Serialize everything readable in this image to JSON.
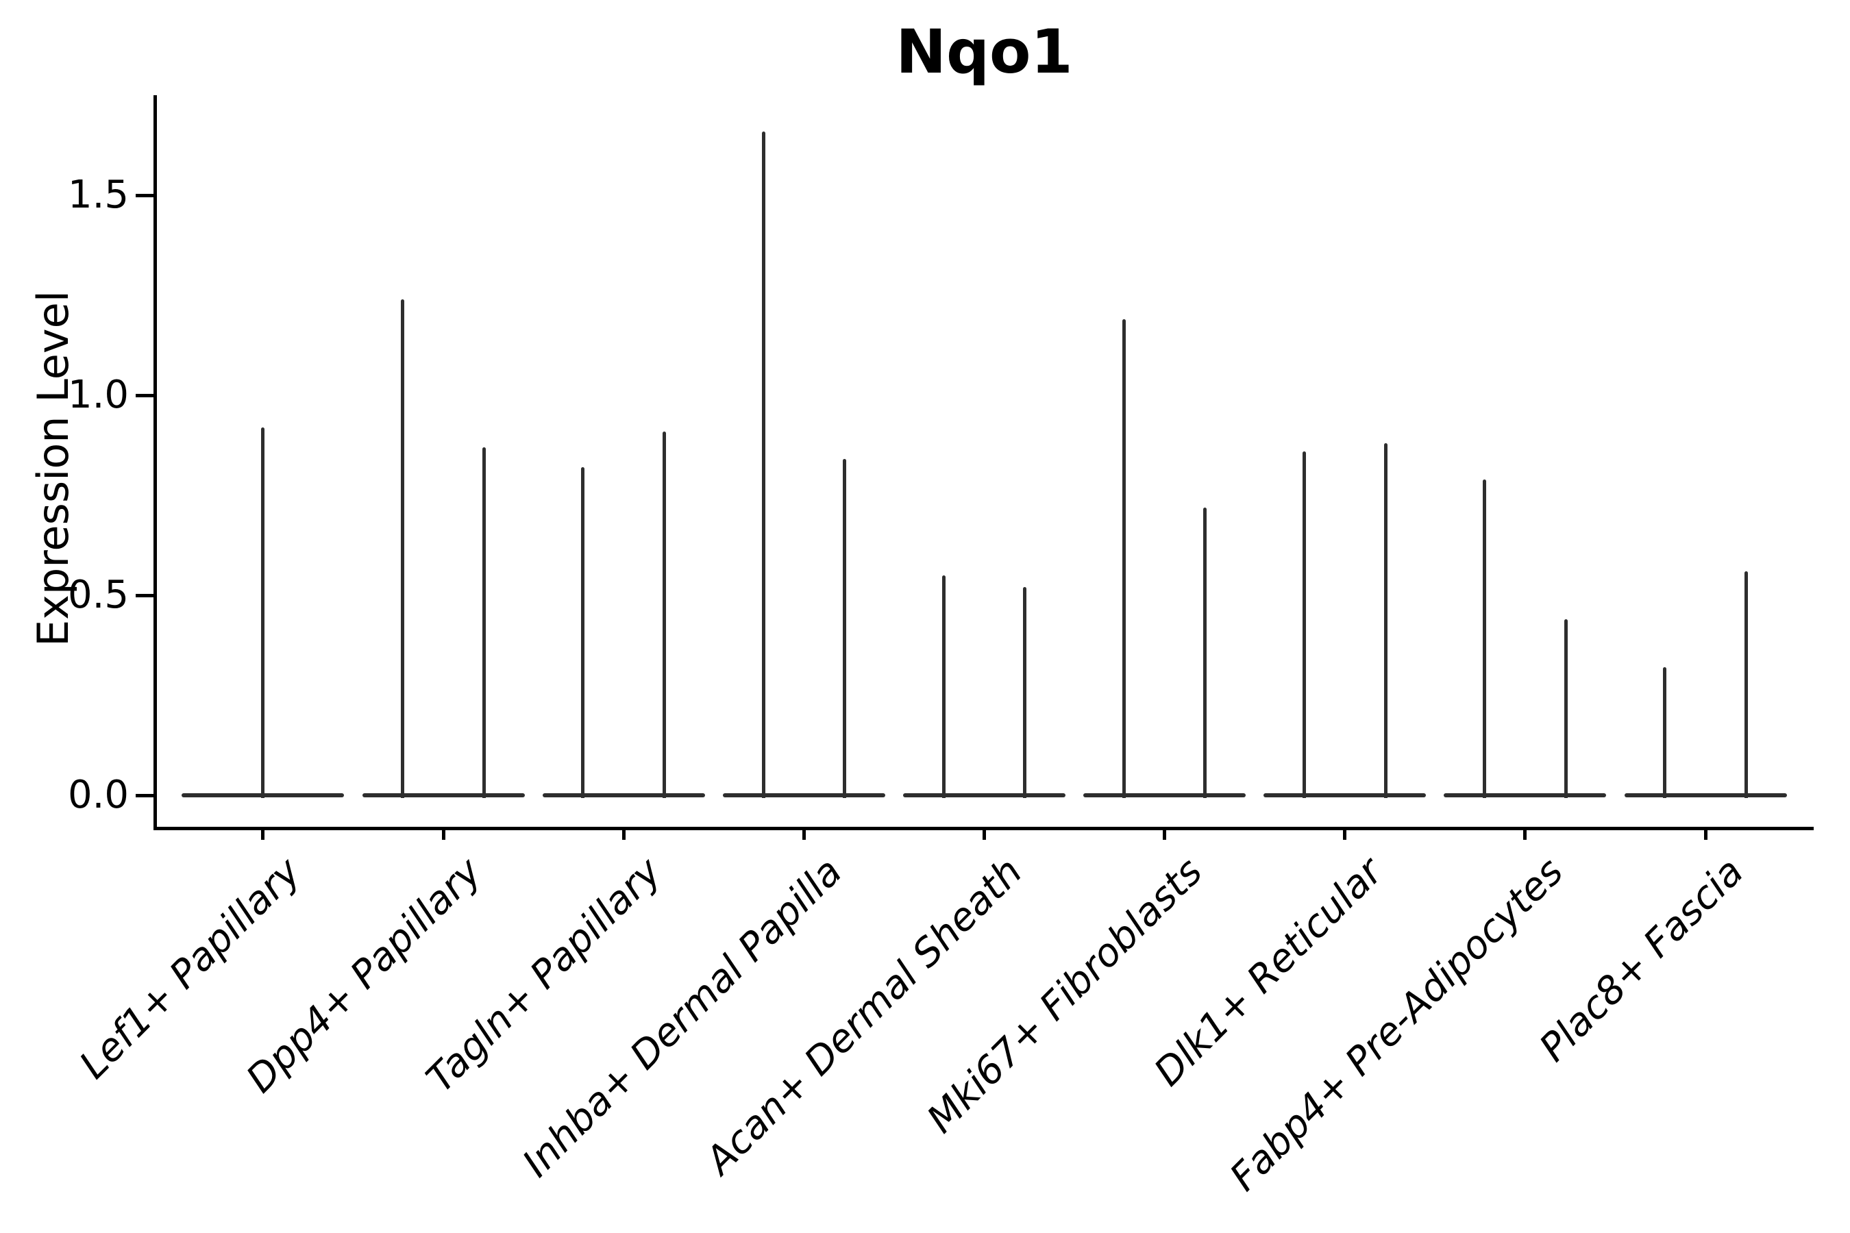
{
  "title": "Nqo1",
  "ylabel": "Expression Level",
  "chart_data": {
    "type": "violin",
    "title": "Nqo1",
    "ylabel": "Expression Level",
    "xlabel": "",
    "grid": false,
    "legend": false,
    "background_color": "#ffffff",
    "violin_color": "#2e2e2e",
    "axis_color": "#000000",
    "yticks": [
      0.0,
      0.5,
      1.0,
      1.5
    ],
    "ytick_labels": [
      "0.0",
      "0.5",
      "1.0",
      "1.5"
    ],
    "ylim": [
      -0.083,
      1.747
    ],
    "x_label_rotation_deg": 45,
    "x_label_style": "italic",
    "categories": [
      "Lef1+ Papillary",
      "Dpp4+ Papillary",
      "Tagln+ Papillary",
      "Inhba+ Dermal Papilla",
      "Acan+ Dermal Sheath",
      "Mki67+ Fibroblasts",
      "Dlk1+ Reticular",
      "Fabp4+ Pre-Adipocytes",
      "Plac8+ Fascia"
    ],
    "violins": [
      {
        "category": "Lef1+ Papillary",
        "baseline_value": 0.0,
        "spike_maxima": [
          0.92
        ]
      },
      {
        "category": "Dpp4+ Papillary",
        "baseline_value": 0.0,
        "spike_maxima": [
          1.24,
          0.87
        ]
      },
      {
        "category": "Tagln+ Papillary",
        "baseline_value": 0.0,
        "spike_maxima": [
          0.82,
          0.91
        ]
      },
      {
        "category": "Inhba+ Dermal Papilla",
        "baseline_value": 0.0,
        "spike_maxima": [
          1.66,
          0.84
        ]
      },
      {
        "category": "Acan+ Dermal Sheath",
        "baseline_value": 0.0,
        "spike_maxima": [
          0.55,
          0.52
        ]
      },
      {
        "category": "Mki67+ Fibroblasts",
        "baseline_value": 0.0,
        "spike_maxima": [
          1.19,
          0.72
        ]
      },
      {
        "category": "Dlk1+ Reticular",
        "baseline_value": 0.0,
        "spike_maxima": [
          0.86,
          0.88
        ]
      },
      {
        "category": "Fabp4+ Pre-Adipocytes",
        "baseline_value": 0.0,
        "spike_maxima": [
          0.79,
          0.44
        ]
      },
      {
        "category": "Plac8+ Fascia",
        "baseline_value": 0.0,
        "spike_maxima": [
          0.32,
          0.56
        ]
      }
    ]
  }
}
